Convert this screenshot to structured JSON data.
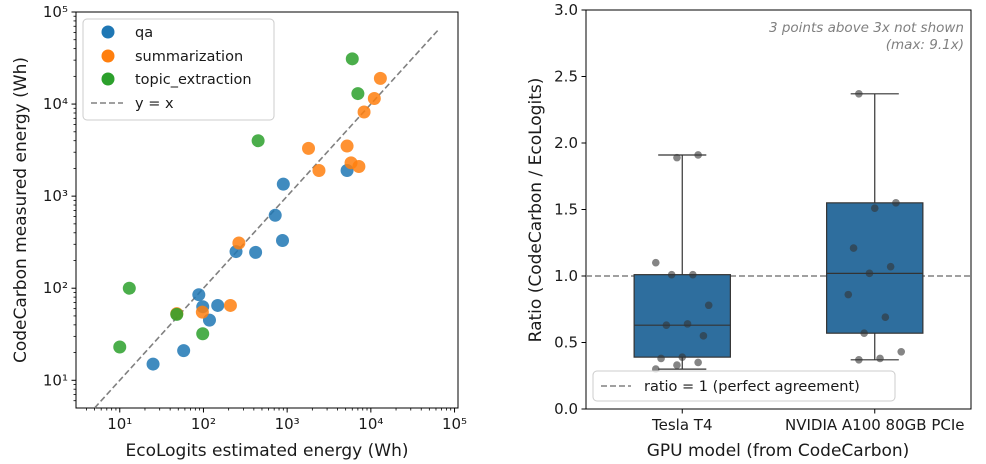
{
  "chart_data": [
    {
      "type": "scatter",
      "xlabel": "EcoLogits estimated energy (Wh)",
      "ylabel": "CodeCarbon measured energy (Wh)",
      "xscale": "log",
      "yscale": "log",
      "xlim": [
        3,
        110000
      ],
      "ylim": [
        5,
        100000
      ],
      "x_ticks": [
        {
          "value": 10,
          "label": "10¹"
        },
        {
          "value": 100,
          "label": "10²"
        },
        {
          "value": 1000,
          "label": "10³"
        },
        {
          "value": 10000,
          "label": "10⁴"
        },
        {
          "value": 100000,
          "label": "10⁵"
        }
      ],
      "y_ticks": [
        {
          "value": 10,
          "label": "10¹"
        },
        {
          "value": 100,
          "label": "10²"
        },
        {
          "value": 1000,
          "label": "10³"
        },
        {
          "value": 10000,
          "label": "10⁴"
        },
        {
          "value": 100000,
          "label": "10⁵"
        }
      ],
      "grid": false,
      "legend_position": "top-left",
      "series": [
        {
          "name": "qa",
          "color": "#1f77b4",
          "points": [
            [
              25,
              15
            ],
            [
              58,
              21
            ],
            [
              88,
              85
            ],
            [
              98,
              63
            ],
            [
              118,
              45
            ],
            [
              148,
              65
            ],
            [
              245,
              250
            ],
            [
              420,
              245
            ],
            [
              720,
              620
            ],
            [
              880,
              330
            ],
            [
              900,
              1350
            ],
            [
              5200,
              1900
            ]
          ]
        },
        {
          "name": "summarization",
          "color": "#ff7f0e",
          "points": [
            [
              48,
              53
            ],
            [
              97,
              55
            ],
            [
              210,
              65
            ],
            [
              265,
              310
            ],
            [
              1800,
              3300
            ],
            [
              2400,
              1900
            ],
            [
              5200,
              3500
            ],
            [
              5800,
              2300
            ],
            [
              7200,
              2100
            ],
            [
              8300,
              8200
            ],
            [
              11000,
              11500
            ],
            [
              13000,
              19000
            ]
          ]
        },
        {
          "name": "topic_extraction",
          "color": "#2ca02c",
          "points": [
            [
              10,
              23
            ],
            [
              13,
              100
            ],
            [
              48,
              52
            ],
            [
              98,
              32
            ],
            [
              450,
              4000
            ],
            [
              6000,
              31000
            ],
            [
              7000,
              13000
            ]
          ]
        }
      ],
      "reference_line": {
        "name": "y = x",
        "from": 5,
        "to": 65000,
        "color": "#808080"
      }
    },
    {
      "type": "box",
      "xlabel": "GPU model (from CodeCarbon)",
      "ylabel": "Ratio (CodeCarbon / EcoLogits)",
      "ylim": [
        0.0,
        3.0
      ],
      "y_ticks": [
        "0.0",
        "0.5",
        "1.0",
        "1.5",
        "2.0",
        "2.5",
        "3.0"
      ],
      "categories": [
        "Tesla T4",
        "NVIDIA A100 80GB PCIe"
      ],
      "boxes": [
        {
          "min": 0.3,
          "q1": 0.39,
          "median": 0.63,
          "q3": 1.01,
          "max": 1.91
        },
        {
          "min": 0.37,
          "q1": 0.57,
          "median": 1.02,
          "q3": 1.55,
          "max": 2.37
        }
      ],
      "points": [
        [
          0.3,
          0.33,
          0.35,
          0.38,
          0.39,
          0.55,
          0.63,
          0.64,
          0.78,
          1.01,
          1.01,
          1.1,
          1.89,
          1.91
        ],
        [
          0.37,
          0.38,
          0.43,
          0.57,
          0.69,
          0.86,
          1.02,
          1.07,
          1.21,
          1.51,
          1.55,
          2.37
        ]
      ],
      "box_color": "#2e6e9e",
      "reference_line": {
        "value": 1.0,
        "name": "ratio = 1 (perfect agreement)",
        "color": "#808080"
      },
      "annotation": [
        "3 points above 3x not shown",
        "(max: 9.1x)"
      ],
      "legend_position": "bottom-left",
      "grid": false
    }
  ]
}
